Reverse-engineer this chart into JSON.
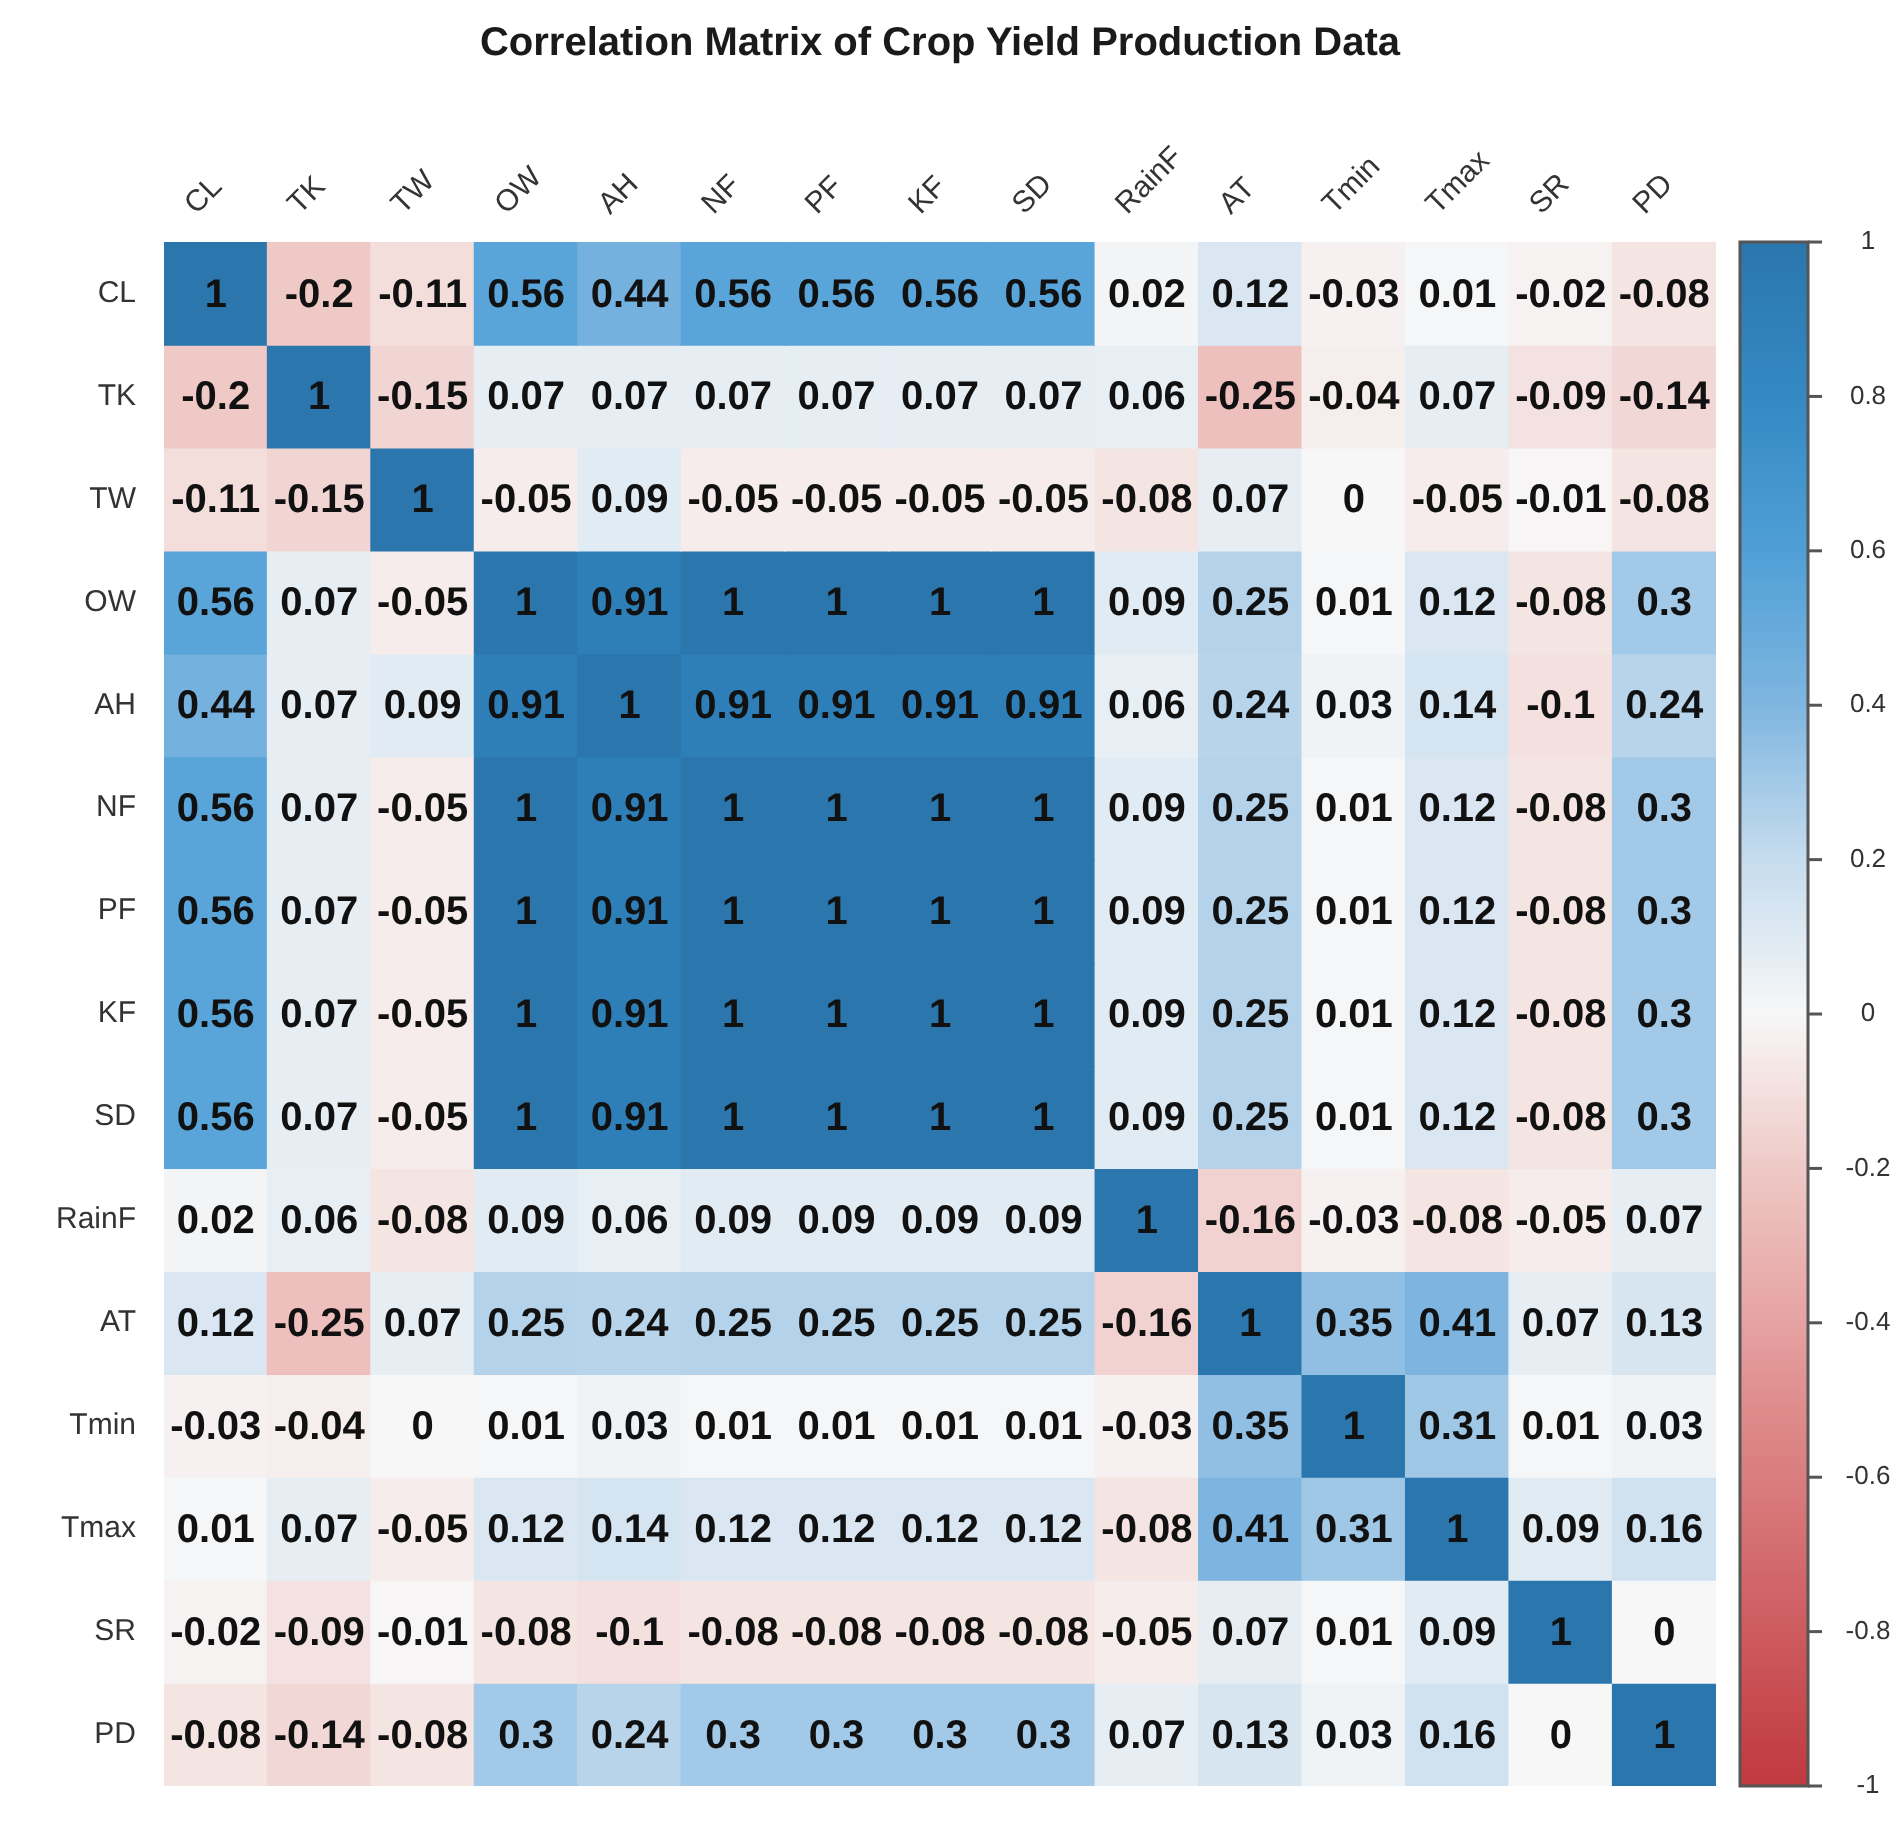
{
  "chart_data": {
    "type": "heatmap",
    "title": "Correlation Matrix of Crop Yield Production Data",
    "categories": [
      "CL",
      "TK",
      "TW",
      "OW",
      "AH",
      "NF",
      "PF",
      "KF",
      "SD",
      "RainF",
      "AT",
      "Tmin",
      "Tmax",
      "SR",
      "PD"
    ],
    "y_categories": [
      "CL",
      "TK",
      "TW",
      "OW",
      "AH",
      "NF",
      "PF",
      "KF",
      "SD",
      "RainF",
      "AT",
      "Tmin",
      "Tmax",
      "SR",
      "PD"
    ],
    "cells": [
      [
        1,
        -0.2,
        -0.11,
        0.56,
        0.44,
        0.56,
        0.56,
        0.56,
        0.56,
        0.02,
        0.12,
        -0.03,
        0.01,
        -0.02,
        -0.08
      ],
      [
        -0.2,
        1,
        -0.15,
        0.07,
        0.07,
        0.07,
        0.07,
        0.07,
        0.07,
        0.06,
        -0.25,
        -0.04,
        0.07,
        -0.09,
        -0.14
      ],
      [
        -0.11,
        -0.15,
        1,
        -0.05,
        0.09,
        -0.05,
        -0.05,
        -0.05,
        -0.05,
        -0.08,
        0.07,
        0,
        -0.05,
        -0.01,
        -0.08
      ],
      [
        0.56,
        0.07,
        -0.05,
        1,
        0.91,
        1,
        1,
        1,
        1,
        0.09,
        0.25,
        0.01,
        0.12,
        -0.08,
        0.3
      ],
      [
        0.44,
        0.07,
        0.09,
        0.91,
        1,
        0.91,
        0.91,
        0.91,
        0.91,
        0.06,
        0.24,
        0.03,
        0.14,
        -0.1,
        0.24
      ],
      [
        0.56,
        0.07,
        -0.05,
        1,
        0.91,
        1,
        1,
        1,
        1,
        0.09,
        0.25,
        0.01,
        0.12,
        -0.08,
        0.3
      ],
      [
        0.56,
        0.07,
        -0.05,
        1,
        0.91,
        1,
        1,
        1,
        1,
        0.09,
        0.25,
        0.01,
        0.12,
        -0.08,
        0.3
      ],
      [
        0.56,
        0.07,
        -0.05,
        1,
        0.91,
        1,
        1,
        1,
        1,
        0.09,
        0.25,
        0.01,
        0.12,
        -0.08,
        0.3
      ],
      [
        0.56,
        0.07,
        -0.05,
        1,
        0.91,
        1,
        1,
        1,
        1,
        0.09,
        0.25,
        0.01,
        0.12,
        -0.08,
        0.3
      ],
      [
        0.02,
        0.06,
        -0.08,
        0.09,
        0.06,
        0.09,
        0.09,
        0.09,
        0.09,
        1,
        -0.16,
        -0.03,
        -0.08,
        -0.05,
        0.07
      ],
      [
        0.12,
        -0.25,
        0.07,
        0.25,
        0.24,
        0.25,
        0.25,
        0.25,
        0.25,
        -0.16,
        1,
        0.35,
        0.41,
        0.07,
        0.13
      ],
      [
        -0.03,
        -0.04,
        0,
        0.01,
        0.03,
        0.01,
        0.01,
        0.01,
        0.01,
        -0.03,
        0.35,
        1,
        0.31,
        0.01,
        0.03
      ],
      [
        0.01,
        0.07,
        -0.05,
        0.12,
        0.14,
        0.12,
        0.12,
        0.12,
        0.12,
        -0.08,
        0.41,
        0.31,
        1,
        0.09,
        0.16
      ],
      [
        -0.02,
        -0.09,
        -0.01,
        -0.08,
        -0.1,
        -0.08,
        -0.08,
        -0.08,
        -0.08,
        -0.05,
        0.07,
        0.01,
        0.09,
        1,
        0
      ],
      [
        -0.08,
        -0.14,
        -0.08,
        0.3,
        0.24,
        0.3,
        0.3,
        0.3,
        0.3,
        0.07,
        0.13,
        0.03,
        0.16,
        0,
        1
      ]
    ],
    "clim": [
      -1,
      1
    ],
    "cticks": [
      -1,
      -0.8,
      -0.6,
      -0.4,
      -0.2,
      0,
      0.2,
      0.4,
      0.6,
      0.8,
      1
    ],
    "data_labels": true
  }
}
